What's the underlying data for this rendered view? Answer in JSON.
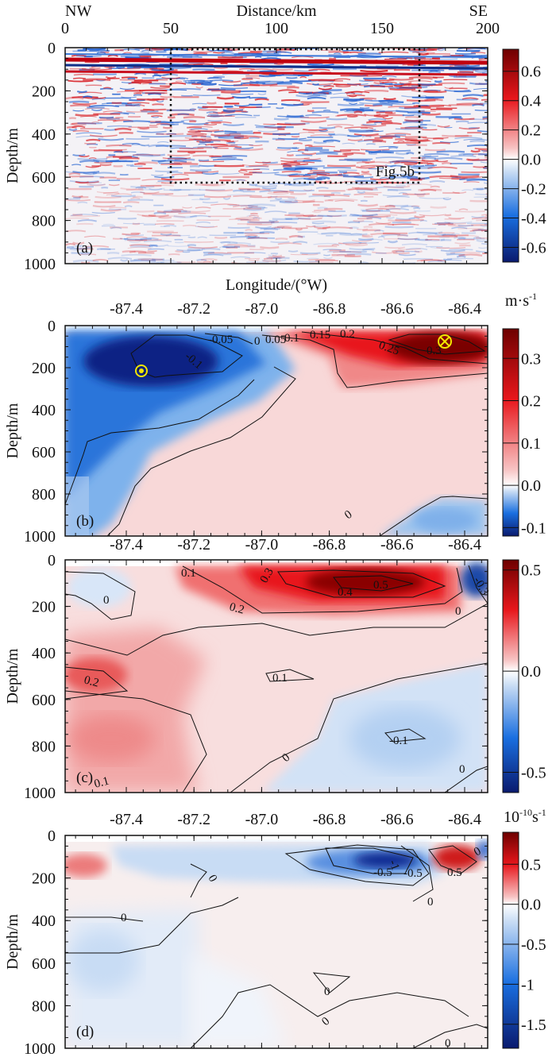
{
  "chart_data": [
    {
      "panel": "a",
      "type": "heatmap",
      "title": "",
      "xlabel": "Distance/km",
      "ylabel": "Depth/m",
      "xlim": [
        0,
        200
      ],
      "ylim": [
        1000,
        0
      ],
      "xticks": [
        "0",
        "50",
        "100",
        "150",
        "200"
      ],
      "yticks": [
        "0",
        "200",
        "400",
        "600",
        "800",
        "1000"
      ],
      "corner_labels": {
        "left": "NW",
        "right": "SE"
      },
      "panel_label": "(a)",
      "box_annotation": {
        "label": "Fig.5b",
        "x_range_km": [
          50,
          170
        ],
        "depth_range_m": [
          0,
          620
        ]
      },
      "colorbar": {
        "ticks": [
          "0.6",
          "0.4",
          "0.2",
          "0.0",
          "-0.2",
          "-0.4",
          "-0.6"
        ],
        "range": [
          -0.7,
          0.75
        ],
        "unit": ""
      }
    },
    {
      "panel": "b",
      "type": "heatmap",
      "xlabel": "Longitude/(°W)",
      "ylabel": "Depth/m",
      "xlim": [
        -87.58,
        -86.33
      ],
      "ylim": [
        1000,
        0
      ],
      "xticks": [
        "-87.4",
        "-87.2",
        "-87.0",
        "-86.8",
        "-86.6",
        "-86.4"
      ],
      "yticks": [
        "0",
        "200",
        "400",
        "600",
        "800",
        "1000"
      ],
      "panel_label": "(b)",
      "contour_labels": [
        "-0.1",
        "-0.05",
        "0",
        "0.05",
        "0.1",
        "0.15",
        "0.2",
        "0.25",
        "0.3",
        "0"
      ],
      "markers": [
        {
          "type": "out-of-page",
          "lon": -87.35,
          "depth": 130
        },
        {
          "type": "into-page",
          "lon": -86.47,
          "depth": 80
        }
      ],
      "colorbar": {
        "ticks": [
          "0.3",
          "0.2",
          "0.1",
          "0.0",
          "-0.1"
        ],
        "range": [
          -0.12,
          0.37
        ],
        "unit": "m·s",
        "unit_sup": "-1"
      }
    },
    {
      "panel": "c",
      "type": "heatmap",
      "xlabel": "",
      "ylabel": "Depth/m",
      "xlim": [
        -87.58,
        -86.33
      ],
      "ylim": [
        1000,
        0
      ],
      "xticks": [
        "-87.4",
        "-87.2",
        "-87.0",
        "-86.8",
        "-86.6",
        "-86.4"
      ],
      "yticks": [
        "0",
        "200",
        "400",
        "600",
        "800",
        "1000"
      ],
      "panel_label": "(c)",
      "contour_labels": [
        "0",
        "0.1",
        "0.3",
        "0.5",
        "0.4",
        "0.2",
        "-0.3",
        "0",
        "0.2",
        "0.1",
        "-0.1",
        "0",
        "0.1",
        "0"
      ],
      "colorbar": {
        "ticks": [
          "0.5",
          "0.0",
          "-0.5"
        ],
        "range": [
          -0.6,
          0.55
        ],
        "unit": ""
      }
    },
    {
      "panel": "d",
      "type": "heatmap",
      "xlabel": "",
      "ylabel": "Depth/m",
      "xlim": [
        -87.58,
        -86.33
      ],
      "ylim": [
        1000,
        0
      ],
      "xticks": [
        "-87.4",
        "-87.2",
        "-87.0",
        "-86.8",
        "-86.6",
        "-86.4"
      ],
      "yticks": [
        "0",
        "200",
        "400",
        "600",
        "800",
        "1000"
      ],
      "panel_label": "(d)",
      "contour_labels": [
        "0",
        "-0.5",
        "-1",
        "-0.5",
        "0",
        "0.5",
        "0",
        "0",
        "0",
        "0",
        "0"
      ],
      "colorbar": {
        "ticks": [
          "0.5",
          "0.0",
          "-0.5",
          "-1",
          "-1.5"
        ],
        "range": [
          -1.8,
          0.9
        ],
        "unit": "10",
        "unit_sup": "-10",
        "unit_tail": "s",
        "unit_sup2": "-1"
      }
    }
  ],
  "colors": {
    "red_dark": "#7a0000",
    "red": "#e8171c",
    "white": "#ffffff",
    "blue": "#1a6fe0",
    "blue_dark": "#0a1a6e",
    "marker": "#f2e600"
  }
}
